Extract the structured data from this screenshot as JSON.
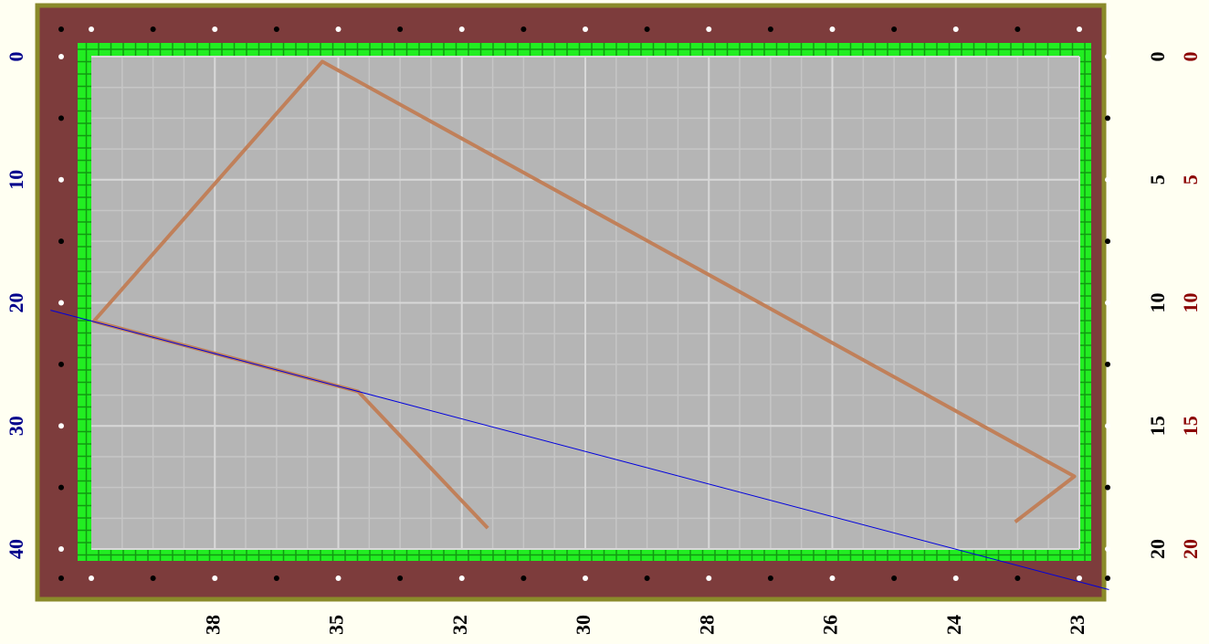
{
  "chart_data": {
    "type": "line",
    "categories": [
      null,
      "38",
      "35",
      "32",
      "30",
      "28",
      "26",
      "24",
      "23"
    ],
    "xlim": [
      0,
      8
    ],
    "xticks": [
      {
        "value": 1,
        "label": "38"
      },
      {
        "value": 2,
        "label": "35"
      },
      {
        "value": 3,
        "label": "32"
      },
      {
        "value": 4,
        "label": "30"
      },
      {
        "value": 5,
        "label": "28"
      },
      {
        "value": 6,
        "label": "26"
      },
      {
        "value": 7,
        "label": "24"
      },
      {
        "value": 8,
        "label": "23"
      }
    ],
    "ylim": [
      0,
      40
    ],
    "yticks": [
      0,
      10,
      20,
      30,
      40
    ],
    "ytick_color": "#00008b",
    "y2lim": [
      0,
      20
    ],
    "y2ticks": [
      0,
      5,
      10,
      15,
      20
    ],
    "y2tick_color": "#000000",
    "y3lim": [
      0,
      20
    ],
    "y3ticks": [
      0,
      5,
      10,
      15,
      20
    ],
    "y3tick_color": "#8b0000",
    "grid": true,
    "series": [
      {
        "color": "#c0805a",
        "width": 4,
        "x": [
          3.21,
          2.16,
          0.02,
          1.87,
          7.96,
          7.48
        ],
        "values": [
          38.3,
          27.2,
          21.5,
          0.4,
          34.1,
          37.8
        ]
      },
      {
        "color": "#0000dd",
        "width": 1,
        "x": [
          -0.33,
          2.16,
          8.24
        ],
        "values": [
          20.6,
          27.2,
          43.3
        ]
      }
    ]
  }
}
